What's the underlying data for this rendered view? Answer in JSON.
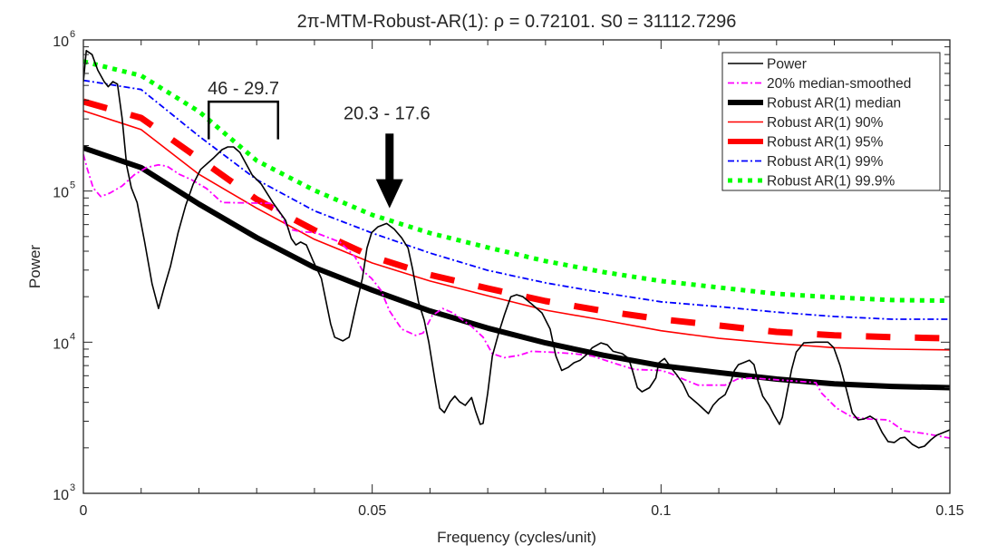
{
  "chart_data": {
    "type": "line",
    "title": "2π-MTM-Robust-AR(1): ρ = 0.72101. S0 = 31112.7296",
    "xlabel": "Frequency (cycles/unit)",
    "ylabel": "Power",
    "xlim": [
      0,
      0.15
    ],
    "ylim": [
      1000,
      1000000
    ],
    "yscale": "log",
    "grid": false,
    "legend_position": "top-right",
    "x_ticks": [
      {
        "value": 0,
        "label": "0"
      },
      {
        "value": 0.05,
        "label": "0.05"
      },
      {
        "value": 0.1,
        "label": "0.1"
      },
      {
        "value": 0.15,
        "label": "0.15"
      }
    ],
    "y_ticks": [
      {
        "value": 1000,
        "base": "10",
        "exp": "3"
      },
      {
        "value": 10000,
        "base": "10",
        "exp": "4"
      },
      {
        "value": 100000,
        "base": "10",
        "exp": "5"
      },
      {
        "value": 1000000,
        "base": "10",
        "exp": "6"
      }
    ],
    "series": [
      {
        "name": "Power",
        "color": "#000000",
        "style": "solid-thin",
        "x": [
          0,
          0.0005,
          0.0015,
          0.0025,
          0.0036,
          0.0043,
          0.0051,
          0.0059,
          0.0067,
          0.0075,
          0.0083,
          0.0093,
          0.0106,
          0.0119,
          0.013,
          0.014,
          0.0151,
          0.0164,
          0.0177,
          0.019,
          0.0203,
          0.0224,
          0.024,
          0.025,
          0.026,
          0.0271,
          0.0281,
          0.0292,
          0.0308,
          0.0328,
          0.035,
          0.036,
          0.0368,
          0.0376,
          0.0386,
          0.0397,
          0.0412,
          0.0428,
          0.0435,
          0.0449,
          0.046,
          0.0471,
          0.0483,
          0.0491,
          0.0499,
          0.051,
          0.0525,
          0.0538,
          0.0551,
          0.0562,
          0.057,
          0.058,
          0.059,
          0.0598,
          0.0609,
          0.0617,
          0.0625,
          0.0635,
          0.0643,
          0.0651,
          0.0661,
          0.0672,
          0.0679,
          0.0687,
          0.0692,
          0.07,
          0.0708,
          0.0719,
          0.0729,
          0.074,
          0.075,
          0.0761,
          0.0776,
          0.0794,
          0.0808,
          0.0818,
          0.0828,
          0.0839,
          0.0849,
          0.086,
          0.087,
          0.0881,
          0.0896,
          0.0907,
          0.0917,
          0.0933,
          0.0944,
          0.0951,
          0.0959,
          0.0967,
          0.098,
          0.0991,
          0.0996,
          0.1006,
          0.1017,
          0.1027,
          0.1038,
          0.1048,
          0.1064,
          0.1082,
          0.109,
          0.11,
          0.1111,
          0.1121,
          0.1127,
          0.1134,
          0.1142,
          0.1153,
          0.1161,
          0.1168,
          0.1176,
          0.1187,
          0.1195,
          0.1205,
          0.121,
          0.1218,
          0.1226,
          0.1234,
          0.1247,
          0.1268,
          0.1289,
          0.1299,
          0.131,
          0.132,
          0.1331,
          0.1341,
          0.1351,
          0.1362,
          0.1372,
          0.1383,
          0.1393,
          0.1404,
          0.1414,
          0.1422,
          0.1435,
          0.1446,
          0.1456,
          0.1467,
          0.1477,
          0.1488,
          0.15
        ],
        "y": [
          530000,
          850000,
          800000,
          630000,
          530000,
          490000,
          530000,
          510000,
          305000,
          147000,
          105000,
          84000,
          46000,
          24300,
          16700,
          23000,
          32000,
          53000,
          80000,
          111000,
          139000,
          164000,
          188000,
          196000,
          196000,
          180000,
          153000,
          128000,
          111000,
          84000,
          64000,
          48500,
          44000,
          46000,
          44000,
          35000,
          26400,
          13200,
          10800,
          10200,
          10800,
          16700,
          26400,
          42000,
          53000,
          58000,
          61000,
          56000,
          49000,
          42000,
          30300,
          18500,
          14000,
          10000,
          5500,
          3660,
          3420,
          4040,
          4400,
          4040,
          3820,
          4300,
          3500,
          2860,
          2900,
          4600,
          8100,
          11500,
          15200,
          20000,
          20600,
          20000,
          17900,
          15600,
          12200,
          8100,
          6500,
          6800,
          7300,
          7600,
          8200,
          9200,
          9900,
          9600,
          8700,
          8400,
          7800,
          6400,
          5000,
          4700,
          5000,
          5800,
          7300,
          7800,
          6800,
          6100,
          5300,
          4400,
          3900,
          3370,
          3820,
          4200,
          4500,
          5500,
          6500,
          7100,
          7300,
          7600,
          7100,
          5500,
          4400,
          3820,
          3330,
          2860,
          3190,
          4600,
          6600,
          8600,
          9900,
          10000,
          10000,
          9200,
          7000,
          5000,
          3420,
          3060,
          3100,
          3240,
          3060,
          2520,
          2200,
          2170,
          2320,
          2350,
          2110,
          2000,
          2050,
          2260,
          2420,
          2520,
          2630
        ]
      },
      {
        "name": "20% median-smoothed",
        "color": "#ff00ff",
        "style": "dash-dot",
        "x": [
          0,
          0.0007,
          0.0017,
          0.003,
          0.0046,
          0.0067,
          0.0088,
          0.0109,
          0.013,
          0.0145,
          0.0166,
          0.0187,
          0.0213,
          0.024,
          0.0323,
          0.0339,
          0.0355,
          0.0375,
          0.0402,
          0.0444,
          0.047,
          0.0483,
          0.0499,
          0.0515,
          0.053,
          0.0551,
          0.0575,
          0.0588,
          0.0604,
          0.0622,
          0.064,
          0.0672,
          0.0692,
          0.0708,
          0.0729,
          0.0755,
          0.0776,
          0.0808,
          0.0849,
          0.0881,
          0.0917,
          0.0954,
          0.1001,
          0.1017,
          0.1038,
          0.1064,
          0.1111,
          0.1132,
          0.1158,
          0.1268,
          0.1278,
          0.1304,
          0.1331,
          0.1362,
          0.1393,
          0.142,
          0.1456,
          0.15
        ],
        "y": [
          175000,
          139000,
          105000,
          92000,
          97000,
          108000,
          128000,
          143000,
          149000,
          146000,
          129000,
          119000,
          104000,
          84000,
          83000,
          73000,
          56000,
          54000,
          53000,
          46000,
          36800,
          29900,
          26400,
          22100,
          16100,
          12200,
          11100,
          11500,
          15000,
          16700,
          15600,
          12700,
          10800,
          8400,
          7900,
          8200,
          8700,
          8600,
          8400,
          8100,
          7300,
          6600,
          6500,
          6200,
          5700,
          5200,
          5200,
          5700,
          5800,
          5400,
          4600,
          3660,
          3190,
          3100,
          3060,
          2590,
          2490,
          2320
        ]
      },
      {
        "name": "Robust AR(1) median",
        "color": "#000000",
        "style": "solid-thick",
        "x": [
          0,
          0.01,
          0.02,
          0.03,
          0.04,
          0.05,
          0.06,
          0.07,
          0.08,
          0.09,
          0.1,
          0.11,
          0.12,
          0.13,
          0.14,
          0.15
        ],
        "y": [
          193000,
          143000,
          82000,
          49200,
          31200,
          22100,
          16100,
          12400,
          9900,
          8200,
          7000,
          6300,
          5700,
          5300,
          5100,
          5000
        ]
      },
      {
        "name": "Robust AR(1) 90%",
        "color": "#ff0000",
        "style": "solid-thin",
        "x": [
          0,
          0.01,
          0.02,
          0.03,
          0.04,
          0.05,
          0.06,
          0.07,
          0.08,
          0.09,
          0.1,
          0.11,
          0.12,
          0.13,
          0.14,
          0.15
        ],
        "y": [
          340000,
          255000,
          129000,
          77000,
          47900,
          33400,
          25400,
          20300,
          16300,
          14000,
          11900,
          10600,
          9800,
          9200,
          9000,
          8900
        ]
      },
      {
        "name": "Robust AR(1) 95%",
        "color": "#ff0000",
        "style": "dashed-thick",
        "x": [
          0,
          0.01,
          0.02,
          0.03,
          0.04,
          0.05,
          0.06,
          0.07,
          0.08,
          0.09,
          0.1,
          0.11,
          0.12,
          0.13,
          0.14,
          0.15
        ],
        "y": [
          391000,
          305000,
          164000,
          88000,
          55000,
          36800,
          27900,
          22700,
          18700,
          16100,
          14200,
          12900,
          11700,
          11100,
          10800,
          10600
        ]
      },
      {
        "name": "Robust AR(1) 99%",
        "color": "#0000ff",
        "style": "dash-dot",
        "x": [
          0,
          0.01,
          0.02,
          0.03,
          0.04,
          0.05,
          0.06,
          0.07,
          0.08,
          0.09,
          0.1,
          0.11,
          0.12,
          0.13,
          0.14,
          0.15
        ],
        "y": [
          540000,
          470000,
          231000,
          119000,
          74000,
          52700,
          38900,
          29900,
          24700,
          21200,
          18500,
          17200,
          15800,
          14800,
          14200,
          14200
        ]
      },
      {
        "name": "Robust AR(1) 99.9%",
        "color": "#00ff00",
        "style": "dotted-thick",
        "x": [
          0,
          0.01,
          0.02,
          0.03,
          0.04,
          0.05,
          0.06,
          0.07,
          0.08,
          0.09,
          0.1,
          0.11,
          0.12,
          0.13,
          0.14,
          0.15
        ],
        "y": [
          720000,
          580000,
          336000,
          159000,
          101000,
          69500,
          52700,
          42300,
          34400,
          29100,
          25400,
          23000,
          20900,
          19800,
          19000,
          18800
        ]
      }
    ],
    "annotations": [
      {
        "type": "bracket",
        "text": "46 - 29.7",
        "x_range": [
          0.0217,
          0.0337
        ],
        "y_top": 390000,
        "y_bottom": 220000
      },
      {
        "type": "arrow",
        "text": "20.3 - 17.6",
        "x": 0.053,
        "y_from": 240000,
        "y_to": 77000
      }
    ]
  }
}
